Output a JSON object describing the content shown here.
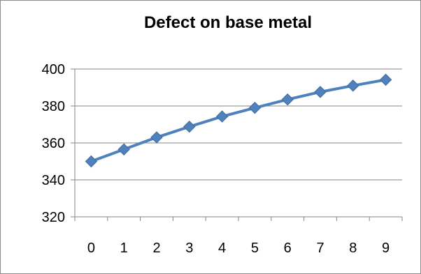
{
  "chart_data": {
    "type": "line",
    "title": "Defect on base metal",
    "xlabel": "",
    "ylabel": "",
    "x": [
      0,
      1,
      2,
      3,
      4,
      5,
      6,
      7,
      8,
      9
    ],
    "series": [
      {
        "name": "",
        "color": "#4f81bd",
        "marker": "diamond",
        "values": [
          350,
          356.5,
          363,
          368.8,
          374.3,
          379,
          383.5,
          387.6,
          391,
          394.2
        ]
      }
    ],
    "ylim": [
      320,
      400
    ],
    "yticks": [
      320,
      340,
      360,
      380,
      400
    ],
    "grid": "horizontal",
    "legend": "none"
  }
}
